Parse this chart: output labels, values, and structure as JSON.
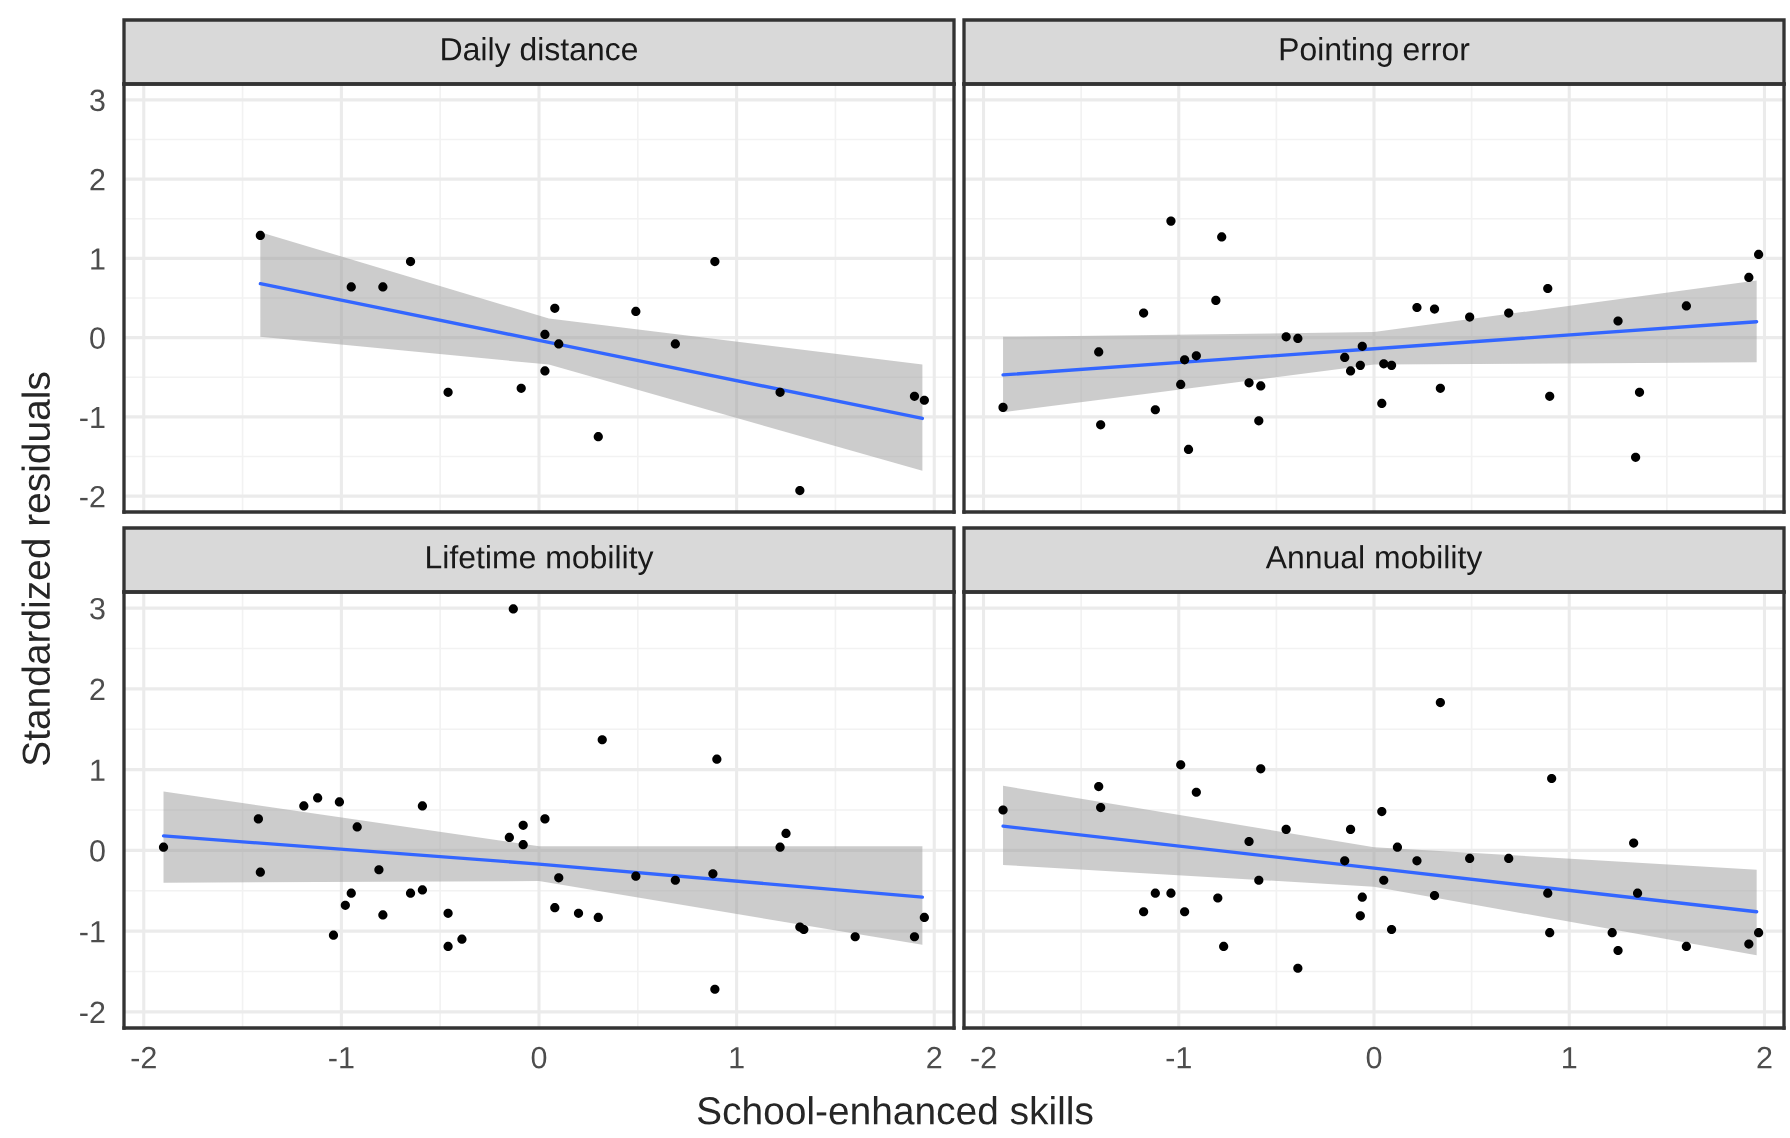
{
  "chart_data": [
    {
      "type": "scatter",
      "title": "Daily distance",
      "ylabel": "Standardized residuals",
      "xlim": [
        -2.1,
        2.1
      ],
      "ylim": [
        -2.2,
        3.2
      ],
      "xticks": [
        -2,
        -1,
        0,
        1,
        2
      ],
      "yticks": [
        -2,
        -1,
        0,
        1,
        2,
        3
      ],
      "grid": true,
      "tick_labels": "y",
      "series": [
        {
          "marker": "circle",
          "color": "#000000",
          "x": [
            -1.41,
            -0.95,
            -0.79,
            -0.65,
            -0.46,
            -0.09,
            0.03,
            0.08,
            0.1,
            0.03,
            0.3,
            0.49,
            0.69,
            0.89,
            1.22,
            1.32,
            1.9,
            1.95
          ],
          "values": [
            1.29,
            0.64,
            0.64,
            0.96,
            -0.69,
            -0.64,
            0.04,
            0.37,
            -0.08,
            -0.42,
            -1.25,
            0.33,
            -0.08,
            0.96,
            -0.69,
            -1.93,
            -0.74,
            -0.79
          ]
        },
        {
          "type": "line",
          "color": "#3366ff",
          "x": [
            -1.41,
            0.05,
            1.94
          ],
          "values": [
            0.68,
            -0.06,
            -1.02
          ],
          "lower": [
            0.01,
            -0.34,
            -1.68
          ],
          "upper": [
            1.33,
            0.24,
            -0.34
          ]
        }
      ]
    },
    {
      "type": "scatter",
      "title": "Pointing error",
      "xlim": [
        -2.1,
        2.1
      ],
      "ylim": [
        -2.2,
        3.2
      ],
      "xticks": [
        -2,
        -1,
        0,
        1,
        2
      ],
      "yticks": [
        -2,
        -1,
        0,
        1,
        2,
        3
      ],
      "grid": true,
      "tick_labels": false,
      "series": [
        {
          "marker": "circle",
          "color": "#000000",
          "x": [
            -1.9,
            -1.41,
            -1.4,
            -1.18,
            -1.12,
            -1.04,
            -0.99,
            -0.97,
            -0.95,
            -0.91,
            -0.81,
            -0.78,
            -0.64,
            -0.59,
            -0.58,
            -0.45,
            -0.39,
            -0.15,
            -0.12,
            -0.07,
            -0.06,
            0.04,
            0.05,
            0.09,
            0.22,
            0.31,
            0.34,
            0.49,
            0.69,
            0.89,
            0.9,
            1.25,
            1.34,
            1.36,
            1.6,
            1.92,
            1.97
          ],
          "values": [
            -0.88,
            -0.18,
            -1.1,
            0.31,
            -0.91,
            1.47,
            -0.59,
            -0.28,
            -1.41,
            -0.23,
            0.47,
            1.27,
            -0.57,
            -1.05,
            -0.61,
            0.01,
            -0.01,
            -0.25,
            -0.42,
            -0.35,
            -0.11,
            -0.83,
            -0.33,
            -0.35,
            0.38,
            0.36,
            -0.64,
            0.26,
            0.31,
            0.62,
            -0.74,
            0.21,
            -1.51,
            -0.69,
            0.4,
            0.76,
            1.05
          ]
        },
        {
          "type": "line",
          "color": "#3366ff",
          "x": [
            -1.9,
            0.0,
            1.96
          ],
          "values": [
            -0.47,
            -0.14,
            0.2
          ],
          "lower": [
            -0.94,
            -0.34,
            -0.31
          ],
          "upper": [
            0.01,
            0.07,
            0.72
          ]
        }
      ]
    },
    {
      "type": "scatter",
      "title": "Lifetime mobility",
      "xlabel": "School-enhanced skills",
      "xlim": [
        -2.1,
        2.1
      ],
      "ylim": [
        -2.2,
        3.2
      ],
      "xticks": [
        -2,
        -1,
        0,
        1,
        2
      ],
      "yticks": [
        -2,
        -1,
        0,
        1,
        2,
        3
      ],
      "grid": true,
      "series": [
        {
          "marker": "circle",
          "color": "#000000",
          "x": [
            -1.9,
            -1.42,
            -1.41,
            -1.19,
            -1.12,
            -1.04,
            -1.01,
            -0.98,
            -0.95,
            -0.92,
            -0.81,
            -0.79,
            -0.65,
            -0.59,
            -0.59,
            -0.46,
            -0.46,
            -0.39,
            -0.15,
            -0.13,
            -0.08,
            -0.08,
            0.03,
            0.08,
            0.1,
            0.2,
            0.3,
            0.32,
            0.49,
            0.69,
            0.88,
            0.89,
            0.9,
            1.22,
            1.25,
            1.32,
            1.34,
            1.6,
            1.9,
            1.95
          ],
          "values": [
            0.04,
            0.39,
            -0.27,
            0.55,
            0.65,
            -1.05,
            0.6,
            -0.68,
            -0.53,
            0.29,
            -0.24,
            -0.8,
            -0.53,
            0.55,
            -0.49,
            -0.78,
            -1.19,
            -1.1,
            0.16,
            2.99,
            0.07,
            0.31,
            0.39,
            -0.71,
            -0.34,
            -0.78,
            -0.83,
            1.37,
            -0.32,
            -0.37,
            -0.29,
            -1.72,
            1.13,
            0.04,
            0.21,
            -0.95,
            -0.98,
            -1.07,
            -1.07,
            -0.83
          ]
        },
        {
          "type": "line",
          "color": "#3366ff",
          "x": [
            -1.9,
            0.0,
            1.94
          ],
          "values": [
            0.18,
            -0.17,
            -0.58
          ],
          "lower": [
            -0.4,
            -0.38,
            -1.17
          ],
          "upper": [
            0.73,
            0.05,
            0.05
          ]
        }
      ]
    },
    {
      "type": "scatter",
      "title": "Annual mobility",
      "xlim": [
        -2.1,
        2.1
      ],
      "ylim": [
        -2.2,
        3.2
      ],
      "xticks": [
        -2,
        -1,
        0,
        1,
        2
      ],
      "yticks": [
        -2,
        -1,
        0,
        1,
        2,
        3
      ],
      "grid": true,
      "tick_labels": "x",
      "series": [
        {
          "marker": "circle",
          "color": "#000000",
          "x": [
            -1.9,
            -1.41,
            -1.4,
            -1.18,
            -1.12,
            -1.04,
            -0.99,
            -0.97,
            -0.91,
            -0.8,
            -0.77,
            -0.64,
            -0.59,
            -0.58,
            -0.45,
            -0.39,
            -0.15,
            -0.12,
            -0.07,
            -0.06,
            0.04,
            0.05,
            0.09,
            0.12,
            0.22,
            0.31,
            0.34,
            0.49,
            0.69,
            0.89,
            0.9,
            0.91,
            1.22,
            1.25,
            1.33,
            1.35,
            1.6,
            1.92,
            1.97
          ],
          "values": [
            0.5,
            0.79,
            0.53,
            -0.76,
            -0.53,
            -0.53,
            1.06,
            -0.76,
            0.72,
            -0.59,
            -1.19,
            0.11,
            -0.37,
            1.01,
            0.26,
            -1.46,
            -0.13,
            0.26,
            -0.81,
            -0.58,
            0.48,
            -0.37,
            -0.98,
            0.04,
            -0.13,
            -0.56,
            1.83,
            -0.1,
            -0.1,
            -0.53,
            -1.02,
            0.89,
            -1.02,
            -1.24,
            0.09,
            -0.53,
            -1.19,
            -1.16,
            -1.02
          ]
        },
        {
          "type": "line",
          "color": "#3366ff",
          "x": [
            -1.9,
            0.0,
            1.96
          ],
          "values": [
            0.3,
            -0.22,
            -0.76
          ],
          "lower": [
            -0.18,
            -0.45,
            -1.3
          ],
          "upper": [
            0.8,
            0.04,
            -0.24
          ]
        }
      ]
    }
  ]
}
